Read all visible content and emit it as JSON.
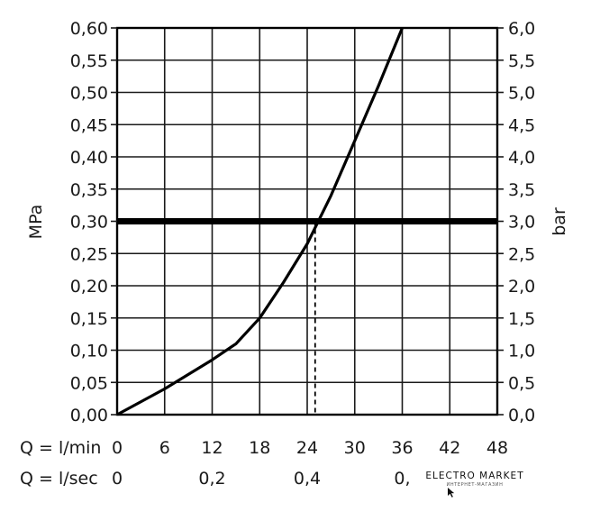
{
  "chart_data": {
    "type": "line",
    "left_axis": {
      "label": "MPa",
      "ylim": [
        0,
        0.6
      ],
      "ticks": [
        "0,00",
        "0,05",
        "0,10",
        "0,15",
        "0,20",
        "0,25",
        "0,30",
        "0,35",
        "0,40",
        "0,45",
        "0,50",
        "0,55",
        "0,60"
      ]
    },
    "right_axis": {
      "label": "bar",
      "ylim": [
        0,
        6
      ],
      "ticks": [
        "0,0",
        "0,5",
        "1,0",
        "1,5",
        "2,0",
        "2,5",
        "3,0",
        "3,5",
        "4,0",
        "4,5",
        "5,0",
        "5,5",
        "6,0"
      ]
    },
    "x_axis": {
      "label": "Q = l/min",
      "xlim": [
        0,
        48
      ],
      "tick_values": [
        0,
        6,
        12,
        18,
        24,
        30,
        36,
        42,
        48
      ],
      "ticks": [
        "0",
        "6",
        "12",
        "18",
        "24",
        "30",
        "36",
        "42",
        "48"
      ]
    },
    "secondary_x_axis": {
      "label": "Q = l/sec",
      "tick_values_lmin": [
        0,
        12,
        24,
        36
      ],
      "ticks": [
        "0",
        "0,2",
        "0,4",
        "0,"
      ]
    },
    "grid": true,
    "series": [
      {
        "x": [
          0,
          6,
          12,
          15,
          18,
          21,
          24,
          27,
          30,
          33,
          36
        ],
        "y": [
          0,
          0.04,
          0.085,
          0.11,
          0.15,
          0.205,
          0.265,
          0.34,
          0.425,
          0.51,
          0.6
        ]
      }
    ],
    "reference_line": {
      "y": 0.3
    },
    "marker_line": {
      "x": 25
    }
  },
  "watermark": {
    "title": "ELECTRO MARKET",
    "subtitle": "ИНТЕРНЕТ-МАГАЗИН"
  }
}
